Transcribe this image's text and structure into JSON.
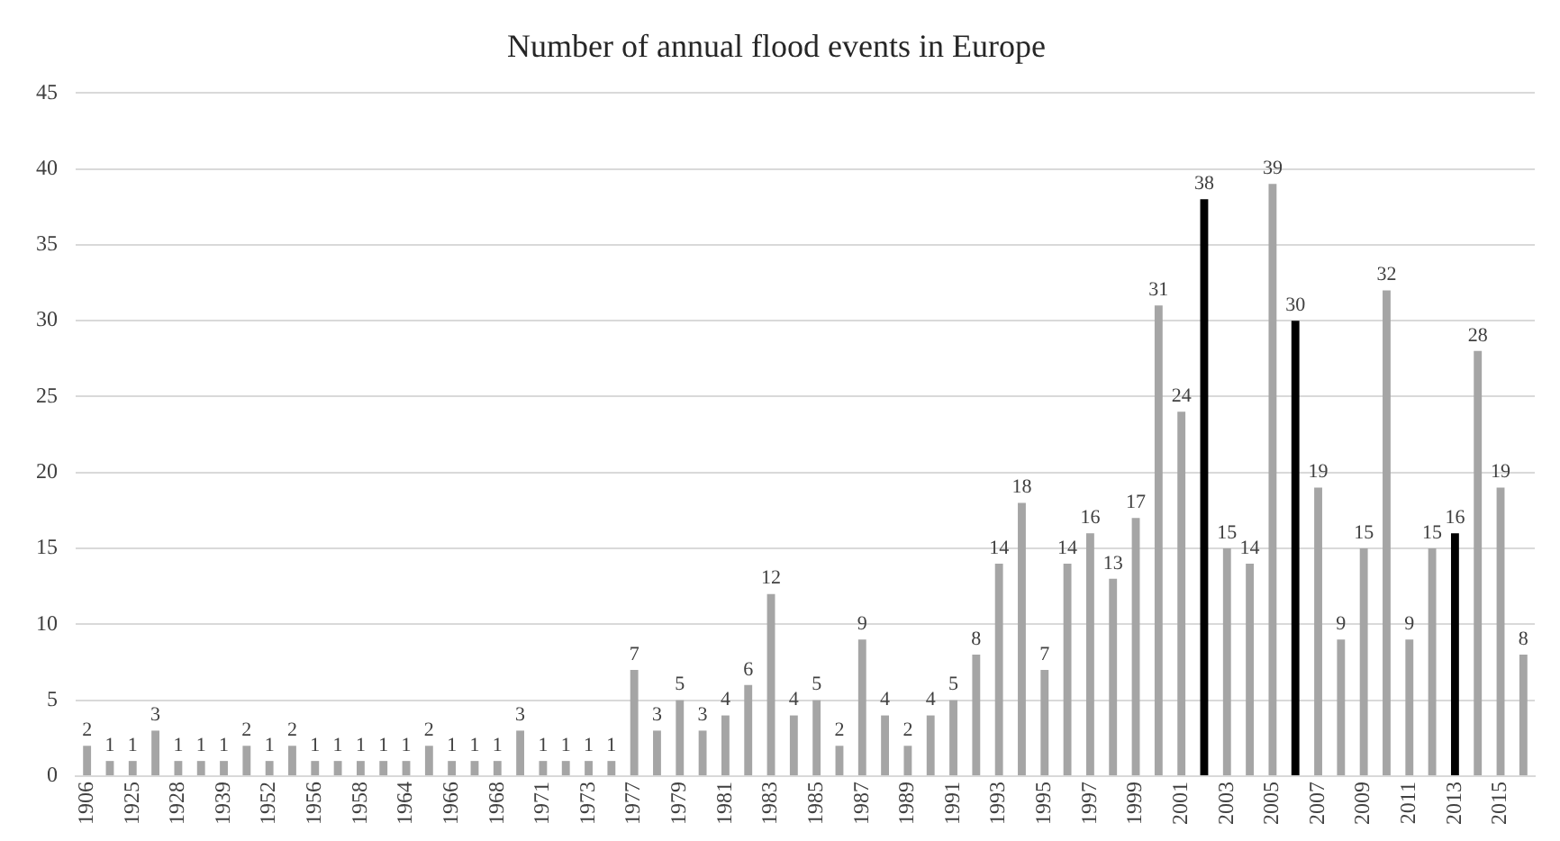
{
  "chart_data": {
    "type": "bar",
    "title": "Number of annual flood events in Europe",
    "categories": [
      "1906",
      null,
      "1925",
      null,
      "1928",
      null,
      "1939",
      null,
      "1952",
      null,
      "1956",
      null,
      "1958",
      null,
      "1964",
      null,
      "1966",
      null,
      "1968",
      null,
      "1971",
      null,
      "1973",
      null,
      "1977",
      null,
      "1979",
      null,
      "1981",
      null,
      "1983",
      null,
      "1985",
      null,
      "1987",
      null,
      "1989",
      null,
      "1991",
      null,
      "1993",
      null,
      "1995",
      null,
      "1997",
      null,
      "1999",
      null,
      "2001",
      null,
      "2003",
      null,
      "2005",
      null,
      "2007",
      null,
      "2009",
      null,
      "2011",
      null,
      "2013",
      null,
      "2015",
      null
    ],
    "values": [
      2,
      1,
      1,
      3,
      1,
      1,
      1,
      2,
      1,
      2,
      1,
      1,
      1,
      1,
      1,
      2,
      1,
      1,
      1,
      3,
      1,
      1,
      1,
      1,
      7,
      3,
      5,
      3,
      4,
      6,
      12,
      4,
      5,
      2,
      9,
      4,
      2,
      4,
      5,
      8,
      14,
      18,
      7,
      14,
      16,
      13,
      17,
      31,
      24,
      38,
      15,
      14,
      39,
      30,
      19,
      9,
      15,
      32,
      9,
      15,
      16,
      28,
      19,
      8
    ],
    "colors": [
      "#a5a5a5",
      "#a5a5a5",
      "#a5a5a5",
      "#a5a5a5",
      "#a5a5a5",
      "#a5a5a5",
      "#a5a5a5",
      "#a5a5a5",
      "#a5a5a5",
      "#a5a5a5",
      "#a5a5a5",
      "#a5a5a5",
      "#a5a5a5",
      "#a5a5a5",
      "#a5a5a5",
      "#a5a5a5",
      "#a5a5a5",
      "#a5a5a5",
      "#a5a5a5",
      "#a5a5a5",
      "#a5a5a5",
      "#a5a5a5",
      "#a5a5a5",
      "#a5a5a5",
      "#a5a5a5",
      "#a5a5a5",
      "#a5a5a5",
      "#a5a5a5",
      "#a5a5a5",
      "#a5a5a5",
      "#a5a5a5",
      "#a5a5a5",
      "#a5a5a5",
      "#a5a5a5",
      "#a5a5a5",
      "#a5a5a5",
      "#a5a5a5",
      "#a5a5a5",
      "#a5a5a5",
      "#a5a5a5",
      "#a5a5a5",
      "#a5a5a5",
      "#a5a5a5",
      "#a5a5a5",
      "#a5a5a5",
      "#a5a5a5",
      "#a5a5a5",
      "#a5a5a5",
      "#a5a5a5",
      "#000000",
      "#a5a5a5",
      "#a5a5a5",
      "#a5a5a5",
      "#000000",
      "#a5a5a5",
      "#a5a5a5",
      "#a5a5a5",
      "#a5a5a5",
      "#a5a5a5",
      "#a5a5a5",
      "#000000",
      "#a5a5a5",
      "#a5a5a5",
      "#a5a5a5"
    ],
    "ylim": [
      0,
      45
    ],
    "yticks": [
      0,
      5,
      10,
      15,
      20,
      25,
      30,
      35,
      40,
      45
    ],
    "grid": "y",
    "data_labels": true
  }
}
